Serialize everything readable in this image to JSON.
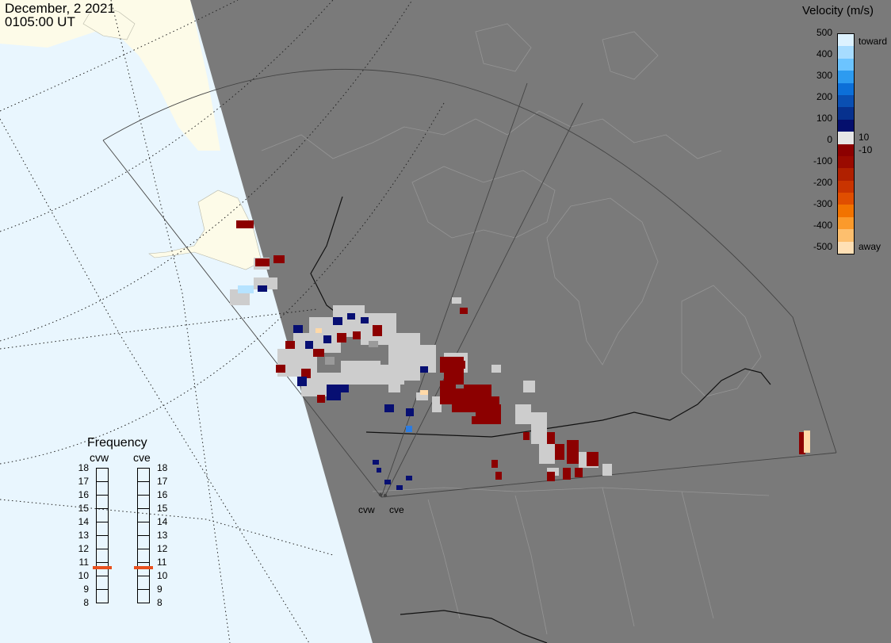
{
  "header": {
    "date": "December, 2 2021",
    "time": "0105:00 UT"
  },
  "colorbar": {
    "title": "Velocity (m/s)",
    "ticks": [
      "500",
      "400",
      "300",
      "200",
      "100",
      "0",
      "-100",
      "-200",
      "-300",
      "-400",
      "-500"
    ],
    "toward_label": "toward",
    "away_label": "away",
    "pos_threshold": "10",
    "neg_threshold": "-10",
    "colors": [
      "#ddf2ff",
      "#a7dcff",
      "#6cc4ff",
      "#2d9bf0",
      "#0c6fd8",
      "#0a4fb2",
      "#07318e",
      "#050f6d",
      "#e6e6e6",
      "#8c0000",
      "#9a0a00",
      "#b02000",
      "#c93400",
      "#e04e00",
      "#f27300",
      "#fb9a2b",
      "#fdbf6e",
      "#ffe0b5"
    ]
  },
  "frequency_panel": {
    "title": "Frequency",
    "radars": [
      "cvw",
      "cve"
    ],
    "scale": [
      "18",
      "17",
      "16",
      "15",
      "14",
      "13",
      "12",
      "11",
      "10",
      "9",
      "8"
    ],
    "selected_mhz": [
      10.6,
      10.6
    ],
    "marker_color": "#e8501e"
  },
  "radar_sites": [
    "cvw",
    "cve"
  ],
  "map_colors": {
    "ocean": "#e9f6fe",
    "land_lit": "#fdfbe8",
    "night": "#7a7a7a",
    "low_velocity": "#cdcdcd",
    "ground_scatter": "#9a9a9a"
  }
}
